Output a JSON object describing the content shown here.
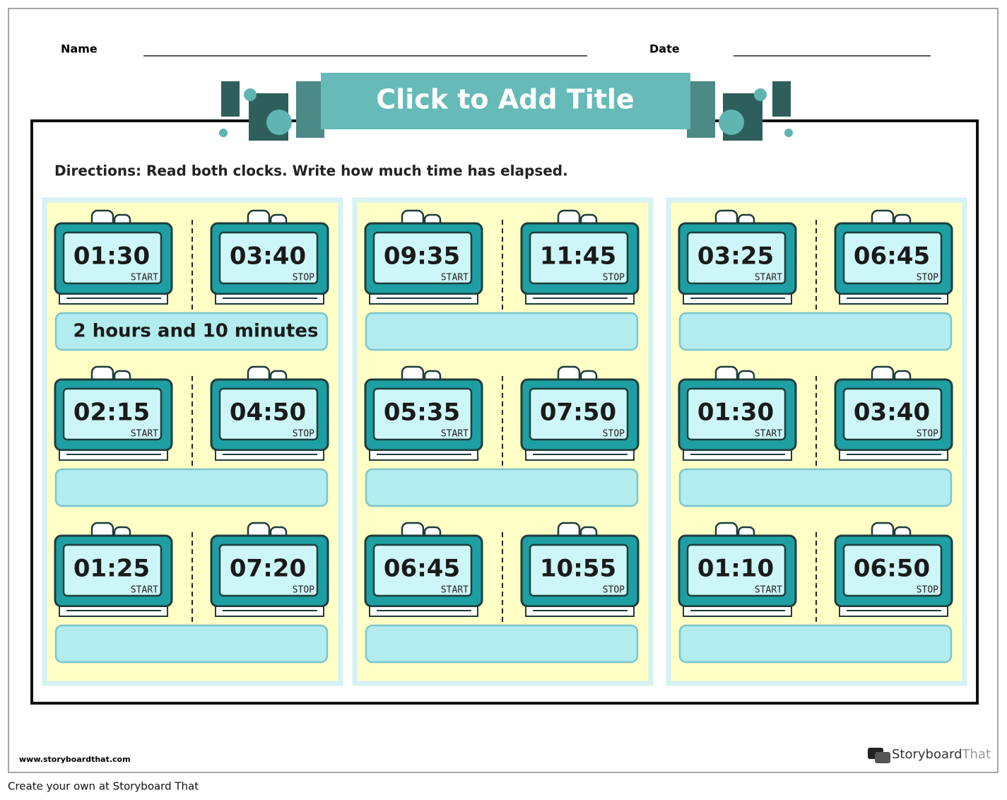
{
  "header": {
    "name_label": "Name",
    "date_label": "Date",
    "title": "Click to Add Title"
  },
  "directions": "Directions: Read both clocks. Write how much time has elapsed.",
  "clock_labels": {
    "start": "START",
    "stop": "STOP"
  },
  "panels": [
    {
      "rows": [
        {
          "start": "01:30",
          "stop": "03:40",
          "answer": "2 hours and 10 minutes"
        },
        {
          "start": "02:15",
          "stop": "04:50"
        },
        {
          "start": "01:25",
          "stop": "07:20"
        }
      ]
    },
    {
      "rows": [
        {
          "start": "09:35",
          "stop": "11:45"
        },
        {
          "start": "05:35",
          "stop": "07:50"
        },
        {
          "start": "06:45",
          "stop": "10:55"
        }
      ]
    },
    {
      "rows": [
        {
          "start": "03:25",
          "stop": "06:45"
        },
        {
          "start": "01:30",
          "stop": "03:40"
        },
        {
          "start": "01:10",
          "stop": "06:50"
        }
      ]
    }
  ],
  "footer": {
    "website": "www.storyboardthat.com",
    "logo_main": "Storyboard",
    "logo_accent": "That",
    "credit": "Create your own at Storyboard That"
  }
}
